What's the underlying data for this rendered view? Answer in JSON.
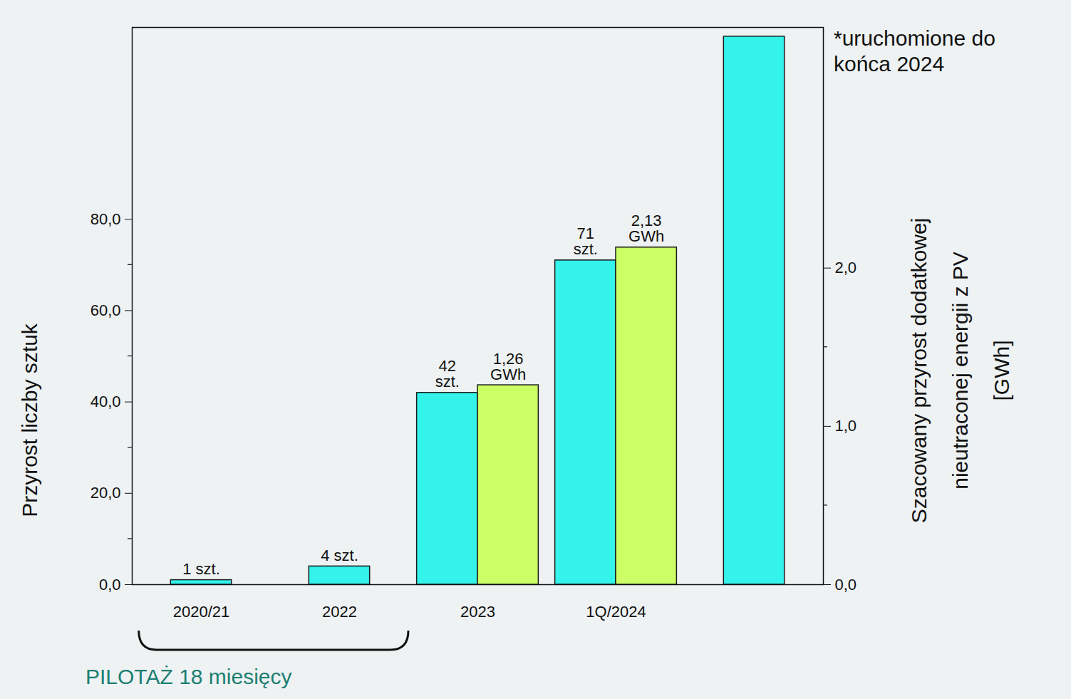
{
  "chart_data": {
    "type": "bar",
    "categories": [
      "2020/21",
      "2022",
      "2023",
      "1Q/2024",
      null
    ],
    "ylabel": "Przyrost liczby sztuk",
    "y2label": "Szacowany przyrost dodatkowej nieutraconej energii z PV [GWh]",
    "ylim": [
      0,
      122
    ],
    "yticks": [
      {
        "value": 0,
        "label": "0,0"
      },
      {
        "value": 20,
        "label": "20,0"
      },
      {
        "value": 40,
        "label": "40,0"
      },
      {
        "value": 60,
        "label": "60,0"
      },
      {
        "value": 80,
        "label": "80,0"
      }
    ],
    "y2lim": [
      0,
      3.52
    ],
    "y2ticks": [
      {
        "value": 0,
        "label": "0,0"
      },
      {
        "value": 1,
        "label": "1,0"
      },
      {
        "value": 2,
        "label": "2,0"
      }
    ],
    "data_labels": true,
    "series": [
      {
        "color": "#33F3EB",
        "values": [
          1,
          4,
          42,
          71,
          120
        ],
        "value_labels": [
          "1 szt.",
          "4 szt.",
          "42 szt.",
          "71 szt.",
          null
        ]
      },
      {
        "color": "#CCFF66",
        "values": [
          null,
          null,
          1.26,
          2.13,
          null
        ],
        "value_labels": [
          null,
          null,
          "1,26 GWh",
          "2,13 GWh",
          null
        ],
        "axis": "y2"
      }
    ],
    "annotations": [
      {
        "text": "*uruchomione do końca 2024"
      },
      {
        "text": "PILOTAŻ 18 miesięcy",
        "categories": [
          "2020/21",
          "2022"
        ]
      }
    ]
  }
}
